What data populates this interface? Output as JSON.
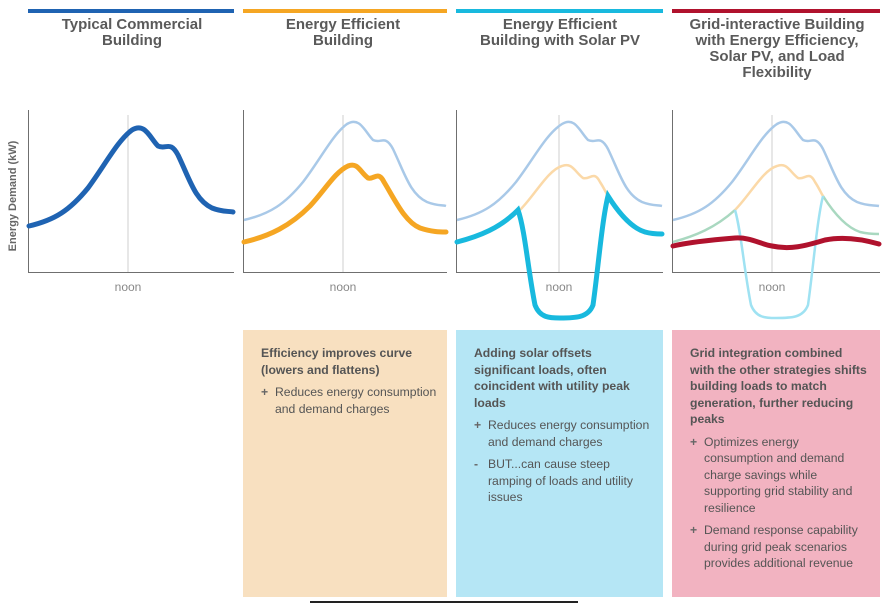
{
  "columns": [
    {
      "title": "Typical Commercial Building",
      "bar_color": "#1f63b2"
    },
    {
      "title": "Energy Efficient Building",
      "bar_color": "#f5a623"
    },
    {
      "title": "Energy Efficient Building with Solar PV",
      "bar_color": "#18b9de"
    },
    {
      "title": "Grid-interactive Building with Energy Efficiency, Solar PV, and Load Flexibility",
      "bar_color": "#b0122d"
    }
  ],
  "y_axis_label": "Energy Demand (kW)",
  "x_marker": "noon",
  "colors": {
    "baseline": "#1f63b2",
    "baseline_faded": "#a9c9e8",
    "efficient": "#f5a623",
    "efficient_faded": "#fbd9a8",
    "solar": "#18b9de",
    "solar_faded": "#9fe2f2",
    "solar_green_faded": "#a9d8c0",
    "flex": "#b0122d"
  },
  "boxes": [
    {
      "heading": "Efficiency improves curve (lowers and flattens)",
      "background": "#f8e0c0",
      "points": [
        {
          "sym": "+",
          "text": "Reduces energy consumption and demand charges"
        }
      ]
    },
    {
      "heading": "Adding solar offsets significant loads, often coincident with utility peak loads",
      "background": "#b5e6f5",
      "points": [
        {
          "sym": "+",
          "text": "Reduces energy consumption and demand charges"
        },
        {
          "sym": "-",
          "text": "BUT...can cause steep ramping of loads and utility issues"
        }
      ]
    },
    {
      "heading": "Grid integration combined with the other strategies shifts building loads to match generation, further reducing peaks",
      "background": "#f2b3c1",
      "points": [
        {
          "sym": "+",
          "text": "Optimizes energy consumption and demand charge savings while supporting grid stability and resilience"
        },
        {
          "sym": "+",
          "text": "Demand response capability during grid peak scenarios provides additional revenue"
        }
      ]
    }
  ]
}
